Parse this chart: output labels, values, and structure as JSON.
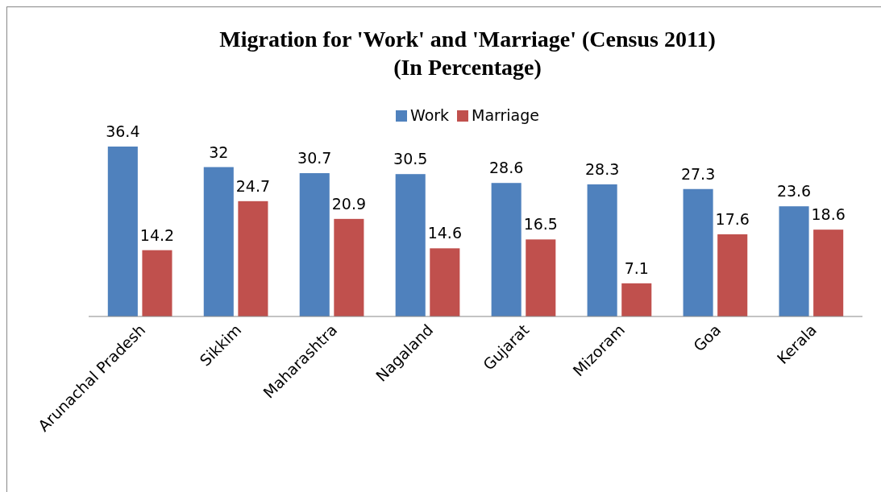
{
  "chart_data": {
    "type": "bar",
    "title": "Migration for 'Work' and 'Marriage' (Census 2011)\n(In Percentage)",
    "categories": [
      "Arunachal Pradesh",
      "Sikkim",
      "Maharashtra",
      "Nagaland",
      "Gujarat",
      "Mizoram",
      "Goa",
      "Kerala"
    ],
    "series": [
      {
        "name": "Work",
        "color": "#4f81bd",
        "values": [
          36.4,
          32,
          30.7,
          30.5,
          28.6,
          28.3,
          27.3,
          23.6
        ]
      },
      {
        "name": "Marriage",
        "color": "#c0504d",
        "values": [
          14.2,
          24.7,
          20.9,
          14.6,
          16.5,
          7.1,
          17.6,
          18.6
        ]
      }
    ],
    "data_labels": true,
    "legend": "top"
  }
}
